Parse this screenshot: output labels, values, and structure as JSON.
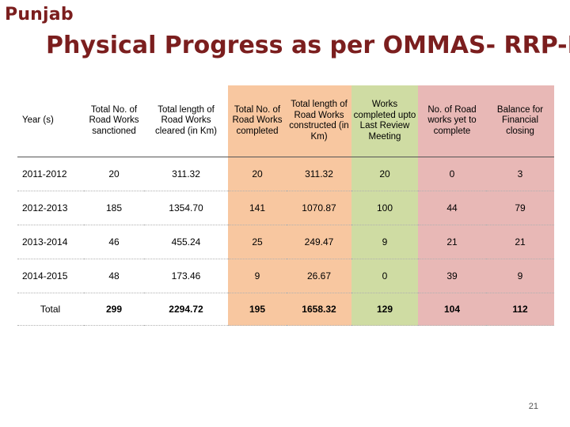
{
  "region": "Punjab",
  "title": "Physical Progress as per OMMAS- RRP-II",
  "colors": {
    "title": "#7b1e1e",
    "orange_column": "#f8c7a0",
    "green_column": "#cfdca3",
    "pink_column": "#e8b8b6"
  },
  "table": {
    "headers": [
      "Year (s)",
      "Total No. of Road Works sanctioned",
      "Total length of Road Works cleared (in Km)",
      "Total No. of Road Works completed",
      "Total length of Road Works constructed (in Km)",
      "Works completed upto Last Review Meeting",
      "No. of Road works yet to complete",
      "Balance for Financial closing"
    ],
    "rows": [
      [
        "2011-2012",
        "20",
        "311.32",
        "20",
        "311.32",
        "20",
        "0",
        "3"
      ],
      [
        "2012-2013",
        "185",
        "1354.70",
        "141",
        "1070.87",
        "100",
        "44",
        "79"
      ],
      [
        "2013-2014",
        "46",
        "455.24",
        "25",
        "249.47",
        "9",
        "21",
        "21"
      ],
      [
        "2014-2015",
        "48",
        "173.46",
        "9",
        "26.67",
        "0",
        "39",
        "9"
      ]
    ],
    "total": [
      "Total",
      "299",
      "2294.72",
      "195",
      "1658.32",
      "129",
      "104",
      "112"
    ]
  },
  "page_number": "21"
}
